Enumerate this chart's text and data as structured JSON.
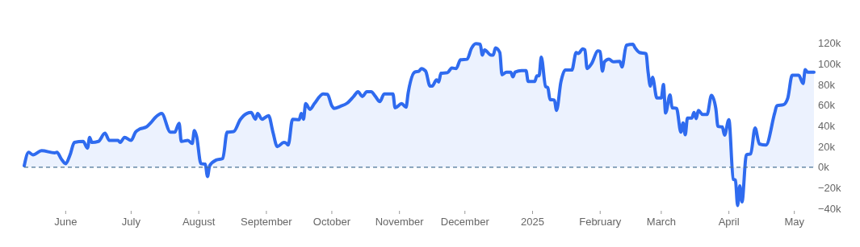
{
  "chart_data": {
    "type": "area",
    "x": [
      "2024-05-13",
      "2024-05-15",
      "2024-05-17",
      "2024-05-21",
      "2024-05-27",
      "2024-05-28",
      "2024-05-30",
      "2024-06-01",
      "2024-06-03",
      "2024-06-05",
      "2024-06-09",
      "2024-06-11",
      "2024-06-12",
      "2024-06-13",
      "2024-06-16",
      "2024-06-19",
      "2024-06-21",
      "2024-06-25",
      "2024-06-26",
      "2024-06-28",
      "2024-07-01",
      "2024-07-03",
      "2024-07-05",
      "2024-07-08",
      "2024-07-10",
      "2024-07-12",
      "2024-07-15",
      "2024-07-19",
      "2024-07-21",
      "2024-07-23",
      "2024-07-24",
      "2024-07-27",
      "2024-07-29",
      "2024-07-30",
      "2024-07-31",
      "2024-08-02",
      "2024-08-04",
      "2024-08-05",
      "2024-08-06",
      "2024-08-09",
      "2024-08-12",
      "2024-08-14",
      "2024-08-17",
      "2024-08-20",
      "2024-08-23",
      "2024-08-25",
      "2024-08-27",
      "2024-08-28",
      "2024-08-30",
      "2024-09-02",
      "2024-09-04",
      "2024-09-06",
      "2024-09-09",
      "2024-09-10",
      "2024-09-11",
      "2024-09-13",
      "2024-09-16",
      "2024-09-17",
      "2024-09-18",
      "2024-09-19",
      "2024-09-21",
      "2024-09-23",
      "2024-09-27",
      "2024-09-29",
      "2024-10-01",
      "2024-10-02",
      "2024-10-05",
      "2024-10-08",
      "2024-10-11",
      "2024-10-13",
      "2024-10-15",
      "2024-10-17",
      "2024-10-19",
      "2024-10-21",
      "2024-10-23",
      "2024-10-25",
      "2024-10-29",
      "2024-10-30",
      "2024-11-02",
      "2024-11-04",
      "2024-11-05",
      "2024-11-08",
      "2024-11-10",
      "2024-11-11",
      "2024-11-13",
      "2024-11-15",
      "2024-11-16",
      "2024-11-18",
      "2024-11-19",
      "2024-11-20",
      "2024-11-23",
      "2024-11-25",
      "2024-11-27",
      "2024-11-29",
      "2024-12-02",
      "2024-12-04",
      "2024-12-06",
      "2024-12-08",
      "2024-12-09",
      "2024-12-10",
      "2024-12-13",
      "2024-12-14",
      "2024-12-15",
      "2024-12-17",
      "2024-12-18",
      "2024-12-20",
      "2024-12-22",
      "2024-12-23",
      "2024-12-24",
      "2024-12-27",
      "2024-12-29",
      "2024-12-30",
      "2025-01-02",
      "2025-01-03",
      "2025-01-04",
      "2025-01-05",
      "2025-01-07",
      "2025-01-08",
      "2025-01-09",
      "2025-01-11",
      "2025-01-12",
      "2025-01-14",
      "2025-01-16",
      "2025-01-19",
      "2025-01-21",
      "2025-01-22",
      "2025-01-24",
      "2025-01-25",
      "2025-01-26",
      "2025-01-28",
      "2025-01-31",
      "2025-02-01",
      "2025-02-02",
      "2025-02-03",
      "2025-02-05",
      "2025-02-07",
      "2025-02-10",
      "2025-02-11",
      "2025-02-13",
      "2025-02-16",
      "2025-02-17",
      "2025-02-19",
      "2025-02-22",
      "2025-02-23",
      "2025-02-24",
      "2025-02-25",
      "2025-02-27",
      "2025-03-01",
      "2025-03-02",
      "2025-03-03",
      "2025-03-05",
      "2025-03-06",
      "2025-03-08",
      "2025-03-10",
      "2025-03-11",
      "2025-03-12",
      "2025-03-13",
      "2025-03-15",
      "2025-03-16",
      "2025-03-17",
      "2025-03-18",
      "2025-03-20",
      "2025-03-22",
      "2025-03-24",
      "2025-03-26",
      "2025-03-27",
      "2025-03-29",
      "2025-03-30",
      "2025-04-01",
      "2025-04-03",
      "2025-04-04",
      "2025-04-05",
      "2025-04-06",
      "2025-04-07",
      "2025-04-09",
      "2025-04-11",
      "2025-04-13",
      "2025-04-15",
      "2025-04-18",
      "2025-04-22",
      "2025-04-23",
      "2025-04-26",
      "2025-04-28",
      "2025-04-30",
      "2025-05-03",
      "2025-05-05",
      "2025-05-06",
      "2025-05-07",
      "2025-05-10"
    ],
    "series": [
      {
        "color": "#2f6bef",
        "values": [
          1500,
          14500,
          12000,
          16000,
          14000,
          14500,
          8000,
          3500,
          12000,
          24000,
          25000,
          18500,
          29000,
          24000,
          25000,
          33000,
          26000,
          26000,
          24000,
          29000,
          26000,
          34000,
          37000,
          39000,
          43000,
          48000,
          52000,
          34000,
          34000,
          42500,
          25000,
          26000,
          23000,
          35500,
          30000,
          3500,
          3000,
          -9000,
          1500,
          7000,
          8500,
          34000,
          34500,
          46000,
          52000,
          53000,
          46500,
          52000,
          46500,
          50000,
          34000,
          20000,
          24000,
          23500,
          21500,
          46500,
          46000,
          52000,
          46500,
          61500,
          56000,
          61500,
          71000,
          70500,
          59500,
          57000,
          59000,
          62000,
          68500,
          73000,
          68500,
          73000,
          73000,
          68500,
          63500,
          71000,
          71000,
          57500,
          61500,
          58000,
          72000,
          92000,
          93000,
          95500,
          93000,
          78500,
          78500,
          84500,
          82500,
          91000,
          91500,
          96000,
          95500,
          104000,
          104500,
          115000,
          119500,
          119000,
          108500,
          113500,
          108500,
          108500,
          115500,
          111000,
          89500,
          92000,
          92000,
          87500,
          92000,
          93500,
          93500,
          83000,
          83000,
          88500,
          88500,
          106500,
          78000,
          77000,
          65500,
          65000,
          55000,
          82500,
          94000,
          94000,
          111000,
          110000,
          114500,
          113500,
          95500,
          100000,
          112500,
          112000,
          93000,
          102000,
          104500,
          102000,
          102500,
          97000,
          118000,
          119000,
          115500,
          111000,
          110000,
          91500,
          78500,
          87000,
          67000,
          67000,
          80000,
          52500,
          70000,
          57500,
          57000,
          34000,
          43000,
          31500,
          47500,
          47500,
          53000,
          47000,
          55000,
          51000,
          51000,
          69500,
          57000,
          39500,
          39000,
          31000,
          46000,
          -11500,
          -12500,
          -37000,
          -18000,
          -33500,
          12000,
          13000,
          38000,
          22500,
          21500,
          52500,
          59500,
          60500,
          67000,
          89000,
          89000,
          81000,
          94500,
          92000,
          92000
        ]
      }
    ],
    "xlim": [
      "2024-05-13",
      "2025-05-10"
    ],
    "xticks": [
      {
        "value": "2024-06-01",
        "label": "June"
      },
      {
        "value": "2024-07-01",
        "label": "July"
      },
      {
        "value": "2024-08-01",
        "label": "August"
      },
      {
        "value": "2024-09-01",
        "label": "September"
      },
      {
        "value": "2024-10-01",
        "label": "October"
      },
      {
        "value": "2024-11-01",
        "label": "November"
      },
      {
        "value": "2024-12-01",
        "label": "December"
      },
      {
        "value": "2025-01-01",
        "label": "2025"
      },
      {
        "value": "2025-02-01",
        "label": "February"
      },
      {
        "value": "2025-03-01",
        "label": "March"
      },
      {
        "value": "2025-04-01",
        "label": "April"
      },
      {
        "value": "2025-05-01",
        "label": "May"
      }
    ],
    "ylim": [
      -40000,
      120000
    ],
    "yticks": [
      {
        "value": 120000,
        "label": "120k"
      },
      {
        "value": 100000,
        "label": "100k"
      },
      {
        "value": 80000,
        "label": "80k"
      },
      {
        "value": 60000,
        "label": "60k"
      },
      {
        "value": 40000,
        "label": "40k"
      },
      {
        "value": 20000,
        "label": "20k"
      },
      {
        "value": 0,
        "label": "0k"
      },
      {
        "value": -20000,
        "label": "−20k"
      },
      {
        "value": -40000,
        "label": "−40k"
      }
    ],
    "ref_lines": [
      {
        "axis": "y",
        "value": 0,
        "color": "#4a7396",
        "line_style": "dashed"
      }
    ]
  }
}
